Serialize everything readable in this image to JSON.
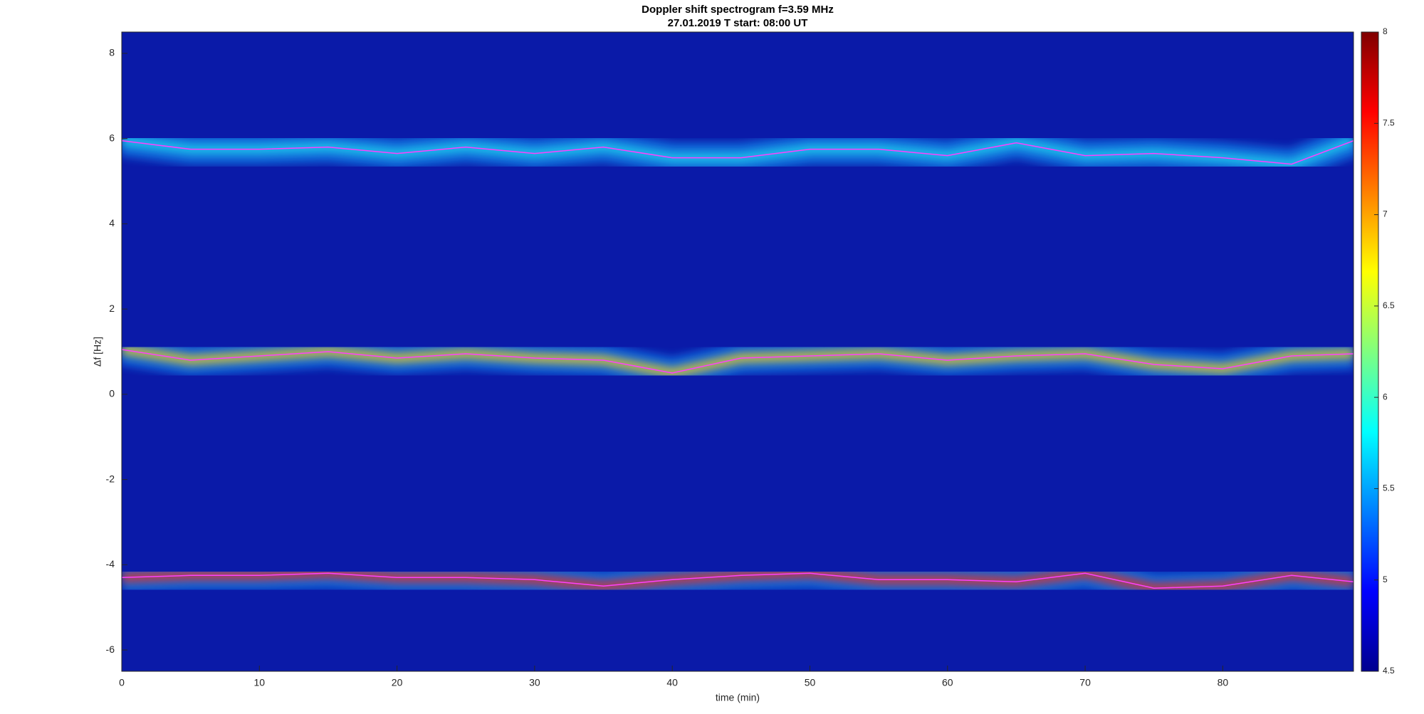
{
  "chart_data": {
    "type": "spectrogram",
    "title": "Doppler shift spectrogram f=3.59 MHz",
    "subtitle": "27.01.2019   T start: 08:00 UT",
    "xlabel": "time (min)",
    "ylabel": "Δf [Hz]",
    "xlim": [
      0,
      89.5
    ],
    "xticks": [
      0,
      10,
      20,
      30,
      40,
      50,
      60,
      70,
      80
    ],
    "ylim": [
      -6.5,
      8.5
    ],
    "yticks": [
      -6,
      -4,
      -2,
      0,
      2,
      4,
      6,
      8
    ],
    "background": "#0a1aa8",
    "clim": [
      4.5,
      8
    ],
    "cticks": [
      4.5,
      5,
      5.5,
      6,
      6.5,
      7,
      7.5,
      8
    ],
    "x": [
      0,
      5,
      10,
      15,
      20,
      25,
      30,
      35,
      40,
      45,
      50,
      55,
      60,
      65,
      70,
      75,
      80,
      85,
      89.5
    ],
    "series": [
      {
        "color": "#ff40ff",
        "band_color": "#22d8f0",
        "values": [
          5.95,
          5.75,
          5.75,
          5.8,
          5.65,
          5.8,
          5.65,
          5.8,
          5.55,
          5.55,
          5.75,
          5.75,
          5.6,
          5.9,
          5.6,
          5.65,
          5.55,
          5.4,
          5.95
        ]
      },
      {
        "color": "#ff40ff",
        "band_color": "#f0d020",
        "values": [
          1.05,
          0.8,
          0.9,
          1.0,
          0.85,
          0.95,
          0.85,
          0.8,
          0.5,
          0.85,
          0.9,
          0.95,
          0.8,
          0.9,
          0.95,
          0.7,
          0.6,
          0.9,
          0.95
        ]
      },
      {
        "color": "#ff40ff",
        "band_color": "#ee3020",
        "values": [
          -4.3,
          -4.25,
          -4.25,
          -4.2,
          -4.3,
          -4.3,
          -4.35,
          -4.5,
          -4.35,
          -4.25,
          -4.2,
          -4.35,
          -4.35,
          -4.4,
          -4.2,
          -4.55,
          -4.5,
          -4.25,
          -4.4
        ]
      }
    ]
  }
}
